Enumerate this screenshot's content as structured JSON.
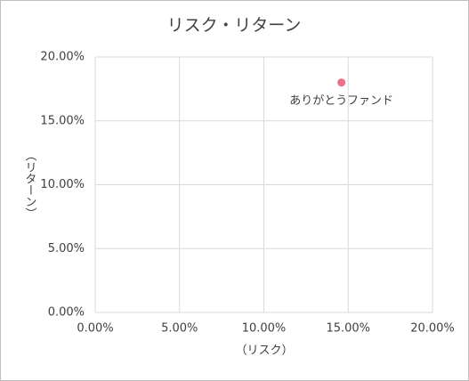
{
  "chart_data": {
    "type": "scatter",
    "title": "リスク・リターン",
    "x_label": "（リスク）",
    "y_label": "（リターン）",
    "series": [
      {
        "name": "ありがとうファンド",
        "color": "#e8708a",
        "x": [
          14.6
        ],
        "values": [
          18
        ]
      }
    ],
    "xlim": [
      0,
      20
    ],
    "ylim": [
      0,
      20
    ],
    "xticks": [
      {
        "value": 0,
        "label": "0.00%"
      },
      {
        "value": 5,
        "label": "5.00%"
      },
      {
        "value": 10,
        "label": "10.00%"
      },
      {
        "value": 15,
        "label": "15.00%"
      },
      {
        "value": 20,
        "label": "20.00%"
      }
    ],
    "yticks": [
      {
        "value": 0,
        "label": "0.00%"
      },
      {
        "value": 5,
        "label": "5.00%"
      },
      {
        "value": 10,
        "label": "10.00%"
      },
      {
        "value": 15,
        "label": "15.00%"
      },
      {
        "value": 20,
        "label": "20.00%"
      }
    ],
    "grid": true
  }
}
